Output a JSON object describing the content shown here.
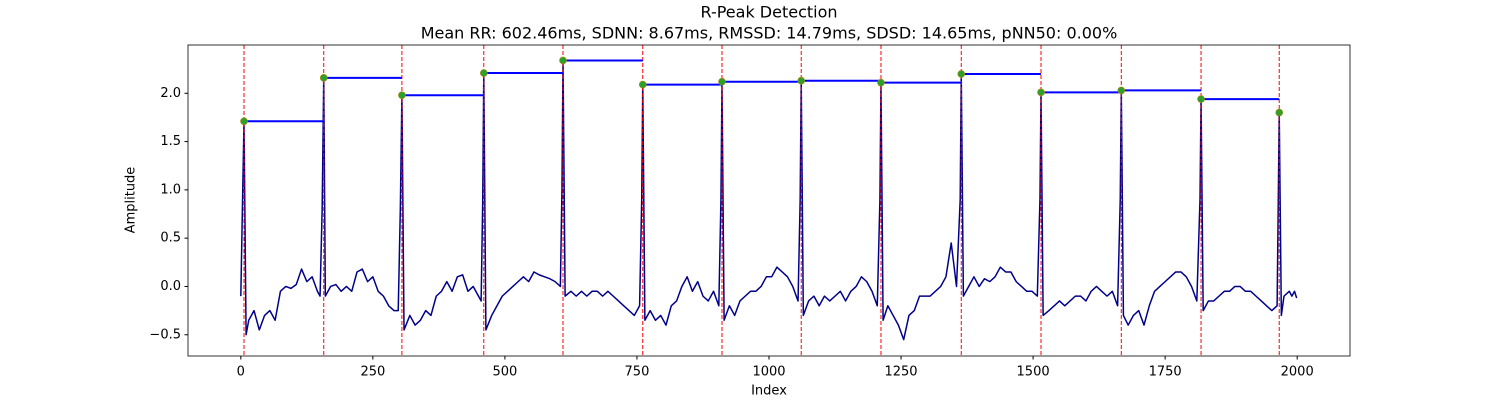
{
  "chart_data": {
    "type": "line",
    "title": "R-Peak Detection",
    "subtitle": "Mean RR: 602.46ms, SDNN: 8.67ms, RMSSD: 14.79ms, SDSD: 14.65ms, pNN50: 0.00%",
    "x_label": "Index",
    "y_label": "Amplitude",
    "xlim": [
      -100,
      2100
    ],
    "ylim": [
      -0.72,
      2.5
    ],
    "xticks": [
      0,
      250,
      500,
      750,
      1000,
      1250,
      1500,
      1750,
      2000
    ],
    "yticks": [
      {
        "value": -0.5,
        "label": "−0.5"
      },
      {
        "value": 0,
        "label": "0.0"
      },
      {
        "value": 0.5,
        "label": "0.5"
      },
      {
        "value": 1,
        "label": "1.0"
      },
      {
        "value": 1.5,
        "label": "1.5"
      },
      {
        "value": 2,
        "label": "2.0"
      }
    ],
    "series": [
      {
        "color": "#00008b",
        "x": [
          0,
          3,
          6,
          10,
          15,
          25,
          35,
          45,
          55,
          65,
          75,
          85,
          95,
          105,
          115,
          125,
          135,
          145,
          150,
          154,
          157,
          160,
          170,
          180,
          190,
          200,
          210,
          220,
          230,
          240,
          250,
          260,
          270,
          280,
          290,
          298,
          302,
          305,
          309,
          320,
          330,
          340,
          350,
          360,
          370,
          380,
          390,
          400,
          410,
          420,
          430,
          440,
          450,
          455,
          458,
          460,
          464,
          475,
          485,
          495,
          505,
          515,
          525,
          535,
          545,
          555,
          565,
          575,
          585,
          595,
          605,
          608,
          610,
          614,
          625,
          635,
          645,
          655,
          665,
          675,
          685,
          695,
          705,
          715,
          725,
          735,
          745,
          755,
          759,
          761,
          765,
          775,
          785,
          795,
          805,
          815,
          825,
          835,
          845,
          855,
          865,
          875,
          885,
          895,
          905,
          909,
          911,
          915,
          925,
          935,
          945,
          955,
          965,
          975,
          985,
          995,
          1005,
          1015,
          1025,
          1035,
          1045,
          1055,
          1059,
          1061,
          1065,
          1075,
          1085,
          1095,
          1105,
          1115,
          1125,
          1135,
          1145,
          1155,
          1165,
          1175,
          1185,
          1195,
          1205,
          1210,
          1212,
          1216,
          1225,
          1235,
          1245,
          1255,
          1265,
          1275,
          1285,
          1295,
          1305,
          1315,
          1325,
          1335,
          1345,
          1355,
          1362,
          1364,
          1368,
          1378,
          1388,
          1398,
          1408,
          1418,
          1428,
          1438,
          1448,
          1458,
          1468,
          1478,
          1488,
          1498,
          1508,
          1513,
          1515,
          1519,
          1530,
          1540,
          1550,
          1560,
          1570,
          1580,
          1590,
          1600,
          1610,
          1620,
          1630,
          1640,
          1650,
          1660,
          1665,
          1667,
          1671,
          1680,
          1690,
          1700,
          1710,
          1720,
          1730,
          1740,
          1750,
          1760,
          1770,
          1780,
          1790,
          1800,
          1810,
          1816,
          1818,
          1822,
          1832,
          1842,
          1852,
          1862,
          1872,
          1882,
          1892,
          1902,
          1912,
          1922,
          1932,
          1942,
          1952,
          1962,
          1964,
          1966,
          1970,
          1975,
          1985,
          1990,
          1995,
          1999
        ],
        "values": [
          -0.1,
          0.8,
          1.71,
          -0.5,
          -0.35,
          -0.25,
          -0.45,
          -0.3,
          -0.25,
          -0.35,
          -0.05,
          0.0,
          -0.02,
          0.02,
          0.18,
          0.05,
          0.1,
          -0.05,
          -0.1,
          0.8,
          2.16,
          -0.1,
          0.0,
          0.02,
          -0.05,
          0.0,
          -0.05,
          0.15,
          0.18,
          0.05,
          0.1,
          -0.05,
          -0.1,
          -0.2,
          -0.25,
          -0.25,
          0.8,
          1.98,
          -0.45,
          -0.3,
          -0.4,
          -0.35,
          -0.25,
          -0.3,
          -0.1,
          -0.05,
          0.05,
          -0.05,
          0.1,
          0.12,
          -0.05,
          0.0,
          -0.1,
          -0.15,
          0.9,
          2.21,
          -0.45,
          -0.3,
          -0.2,
          -0.1,
          -0.05,
          0.0,
          0.05,
          0.1,
          0.05,
          0.15,
          0.12,
          0.1,
          0.08,
          0.05,
          0.0,
          1.0,
          2.34,
          -0.1,
          -0.05,
          -0.1,
          -0.05,
          -0.1,
          -0.05,
          -0.05,
          -0.1,
          -0.05,
          -0.1,
          -0.15,
          -0.2,
          -0.25,
          -0.3,
          -0.2,
          0.9,
          2.09,
          -0.35,
          -0.25,
          -0.35,
          -0.3,
          -0.4,
          -0.2,
          -0.15,
          0.0,
          0.1,
          -0.05,
          0.05,
          -0.1,
          -0.15,
          -0.05,
          -0.2,
          0.9,
          2.12,
          -0.35,
          -0.2,
          -0.3,
          -0.15,
          -0.1,
          -0.05,
          -0.05,
          0.0,
          0.1,
          0.1,
          0.2,
          0.15,
          0.1,
          0.0,
          -0.15,
          0.9,
          2.13,
          -0.3,
          -0.15,
          -0.1,
          -0.2,
          -0.1,
          -0.15,
          -0.1,
          -0.05,
          -0.15,
          -0.05,
          0.0,
          0.1,
          0.05,
          -0.05,
          -0.2,
          0.9,
          2.11,
          -0.35,
          -0.2,
          -0.3,
          -0.4,
          -0.55,
          -0.3,
          -0.25,
          -0.1,
          -0.1,
          -0.1,
          -0.05,
          0.0,
          0.1,
          0.45,
          0.0,
          0.9,
          2.2,
          -0.1,
          0.0,
          0.1,
          0.0,
          0.08,
          0.05,
          0.1,
          0.2,
          0.15,
          0.15,
          0.05,
          0.0,
          -0.05,
          -0.05,
          -0.1,
          0.9,
          2.01,
          -0.3,
          -0.25,
          -0.2,
          -0.15,
          -0.2,
          -0.15,
          -0.1,
          -0.1,
          -0.15,
          -0.05,
          0.0,
          -0.05,
          -0.1,
          -0.05,
          -0.2,
          0.9,
          2.03,
          -0.3,
          -0.4,
          -0.3,
          -0.25,
          -0.4,
          -0.2,
          -0.05,
          0.0,
          0.05,
          0.1,
          0.15,
          0.15,
          0.1,
          0.0,
          -0.15,
          0.9,
          1.94,
          -0.25,
          -0.15,
          -0.15,
          -0.1,
          -0.05,
          -0.05,
          0.0,
          0.0,
          -0.05,
          -0.05,
          -0.1,
          -0.15,
          -0.2,
          -0.25,
          -0.2,
          0.8,
          1.8,
          -0.3,
          -0.1,
          -0.05,
          -0.1,
          -0.05,
          -0.12
        ]
      }
    ],
    "peaks": {
      "color": "#2ca02c",
      "x": [
        6,
        157,
        305,
        460,
        610,
        761,
        911,
        1061,
        1212,
        1364,
        1515,
        1667,
        1818,
        1966
      ],
      "values": [
        1.71,
        2.16,
        1.98,
        2.21,
        2.34,
        2.09,
        2.12,
        2.13,
        2.11,
        2.2,
        2.01,
        2.03,
        1.94,
        1.8
      ]
    },
    "peak_line_color": "#ff0000",
    "interval_color": "#0000ff"
  }
}
